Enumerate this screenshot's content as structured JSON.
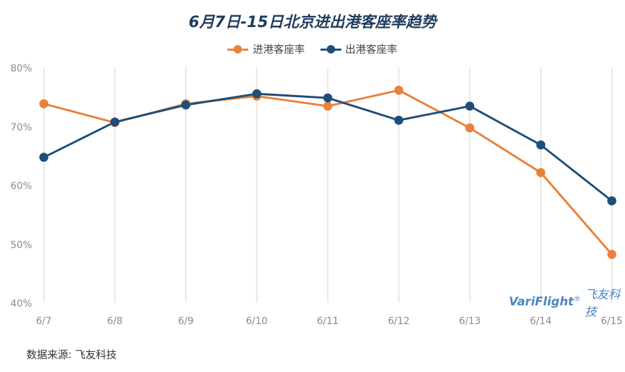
{
  "chart_data": {
    "type": "line",
    "title": "6月7日-15日北京进出港客座率趋势",
    "categories": [
      "6/7",
      "6/8",
      "6/9",
      "6/10",
      "6/11",
      "6/12",
      "6/13",
      "6/14",
      "6/15"
    ],
    "series": [
      {
        "name": "进港客座率",
        "color": "#e8823a",
        "values": [
          73.8,
          70.6,
          73.8,
          75.1,
          73.4,
          76.1,
          69.7,
          62.1,
          48.2
        ]
      },
      {
        "name": "出港客座率",
        "color": "#1f4e79",
        "values": [
          64.7,
          70.7,
          73.6,
          75.5,
          74.8,
          71.0,
          73.4,
          66.8,
          57.3
        ]
      }
    ],
    "ylim": [
      40,
      80
    ],
    "yticks": [
      "80%",
      "70%",
      "60%",
      "50%",
      "40%"
    ],
    "ytick_values": [
      80,
      70,
      60,
      50,
      40
    ],
    "grid": "vertical",
    "legend": "top-center"
  },
  "watermark": {
    "brand_a": "VariFlight",
    "reg": "®",
    "brand_b": "飞友科技"
  },
  "source": "数据来源: 飞友科技"
}
